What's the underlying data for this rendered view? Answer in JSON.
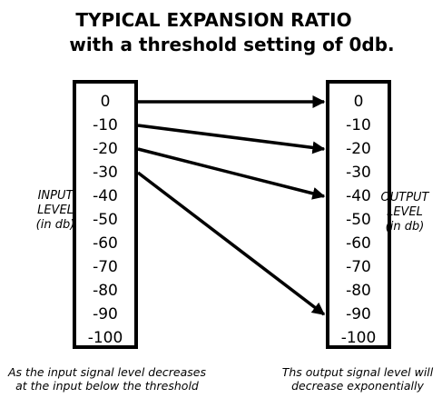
{
  "title": {
    "line1": "TYPICAL EXPANSION RATIO",
    "line2": "with a threshold setting of 0db."
  },
  "input_scale": {
    "ticks": [
      "0",
      "-10",
      "-20",
      "-30",
      "-40",
      "-50",
      "-60",
      "-70",
      "-80",
      "-90",
      "-100"
    ],
    "label_line1": "INPUT",
    "label_line2": "LEVEL",
    "label_line3": "(in db)"
  },
  "output_scale": {
    "ticks": [
      "0",
      "-10",
      "-20",
      "-30",
      "-40",
      "-50",
      "-60",
      "-70",
      "-80",
      "-90",
      "-100"
    ],
    "label_line1": "OUTPUT",
    "label_line2": "LEVEL",
    "label_line3": "(in db)"
  },
  "mappings": [
    {
      "from": 0,
      "to": 0
    },
    {
      "from": -10,
      "to": -20
    },
    {
      "from": -20,
      "to": -40
    },
    {
      "from": -30,
      "to": -90
    }
  ],
  "captions": {
    "input_line1": "As the input signal level decreases",
    "input_line2": "at the input below the threshold",
    "output_line1": "Ths output signal level will",
    "output_line2": "decrease exponentially"
  }
}
